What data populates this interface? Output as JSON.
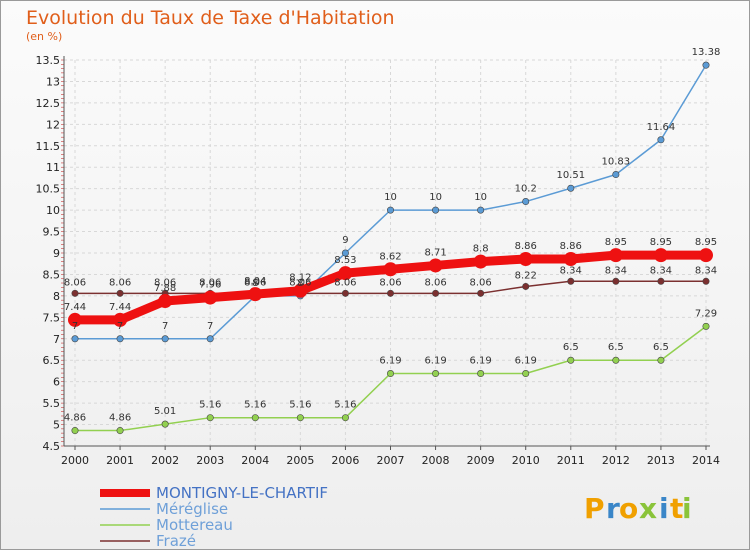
{
  "chart_data": {
    "type": "line",
    "title": "Evolution du Taux de Taxe d'Habitation",
    "subtitle": "(en %)",
    "x": [
      "2000",
      "2001",
      "2002",
      "2003",
      "2004",
      "2005",
      "2006",
      "2007",
      "2008",
      "2009",
      "2010",
      "2011",
      "2012",
      "2013",
      "2014"
    ],
    "ylim": [
      4.5,
      13.5
    ],
    "yticks": [
      "4.5",
      "5",
      "5.5",
      "6",
      "6.5",
      "7",
      "7.5",
      "8",
      "8.5",
      "9",
      "9.5",
      "10",
      "10.5",
      "11",
      "11.5",
      "12",
      "12.5",
      "13",
      "13.5"
    ],
    "grid": true,
    "legend_position": "bottom-left",
    "series": [
      {
        "name": "MONTIGNY-LE-CHARTIF",
        "color": "#ee1111",
        "values": [
          7.44,
          7.44,
          7.88,
          7.96,
          8.04,
          8.12,
          8.53,
          8.62,
          8.71,
          8.8,
          8.86,
          8.86,
          8.95,
          8.95,
          8.95
        ],
        "labels": [
          "7.44",
          "7.44",
          "7.88",
          "7.96",
          "8.04",
          "8.12",
          "8.53",
          "8.62",
          "8.71",
          "8.8",
          "8.86",
          "8.86",
          "8.95",
          "8.95",
          "8.95"
        ]
      },
      {
        "name": "Méréglise",
        "color": "#5b9bd5",
        "values": [
          7,
          7,
          7,
          7,
          8,
          8,
          9,
          10,
          10,
          10,
          10.2,
          10.51,
          10.83,
          11.64,
          13.38
        ],
        "labels": [
          "7",
          "7",
          "7",
          "7",
          "8",
          "8",
          "9",
          "10",
          "10",
          "10",
          "10.2",
          "10.51",
          "10.83",
          "11.64",
          "13.38"
        ]
      },
      {
        "name": "Mottereau",
        "color": "#92d050",
        "values": [
          4.86,
          4.86,
          5.01,
          5.16,
          5.16,
          5.16,
          5.16,
          6.19,
          6.19,
          6.19,
          6.19,
          6.5,
          6.5,
          6.5,
          7.29
        ],
        "labels": [
          "4.86",
          "4.86",
          "5.01",
          "5.16",
          "5.16",
          "5.16",
          "5.16",
          "6.19",
          "6.19",
          "6.19",
          "6.19",
          "6.5",
          "6.5",
          "6.5",
          "7.29"
        ]
      },
      {
        "name": "Frazé",
        "color": "#7b3030",
        "values": [
          8.06,
          8.06,
          8.06,
          8.06,
          8.06,
          8.06,
          8.06,
          8.06,
          8.06,
          8.06,
          8.22,
          8.34,
          8.34,
          8.34,
          8.34
        ],
        "labels": [
          "8.06",
          "8.06",
          "8.06",
          "8.06",
          "8.06",
          "8.06",
          "8.06",
          "8.06",
          "8.06",
          "8.06",
          "8.22",
          "8.34",
          "8.34",
          "8.34",
          "8.34"
        ]
      }
    ]
  },
  "logo": {
    "letters": [
      "P",
      "r",
      "o",
      "x",
      "i",
      "t",
      "i"
    ],
    "colors": [
      "#f0a000",
      "#3a86c8",
      "#f0a000",
      "#8ac43a",
      "#3a86c8",
      "#f0a000",
      "#8ac43a"
    ]
  }
}
